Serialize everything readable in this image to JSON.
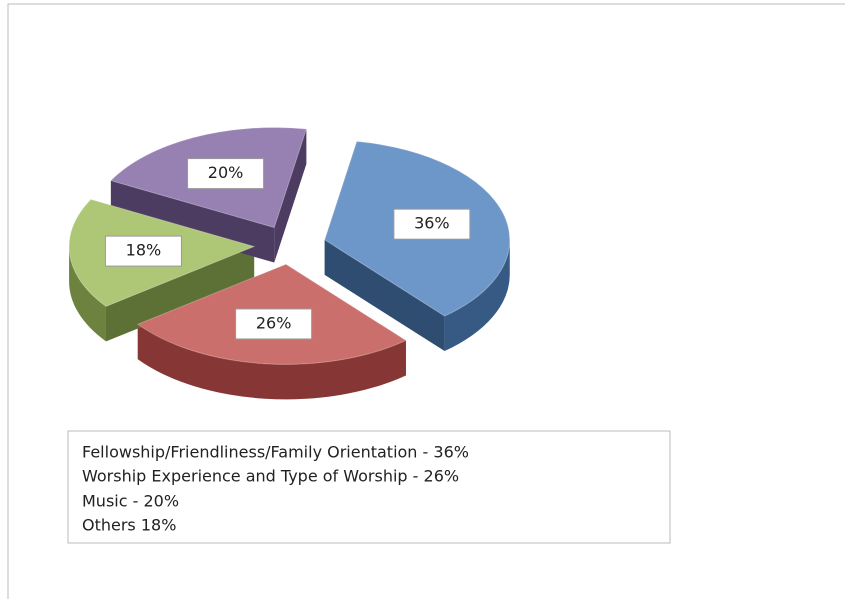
{
  "chart_data": {
    "type": "pie",
    "values": [
      36,
      26,
      18,
      20
    ],
    "value_labels": [
      "36%",
      "26%",
      "18%",
      "20%"
    ],
    "colors": [
      "#4f81bd",
      "#c0504d",
      "#9bbb59",
      "#8064a2"
    ],
    "legend": {
      "lines": [
        "Fellowship/Friendliness/Family Orientation - 36%",
        "Worship Experience and Type of Worship - 26%",
        "Music - 20%",
        "Others 18%"
      ]
    }
  }
}
